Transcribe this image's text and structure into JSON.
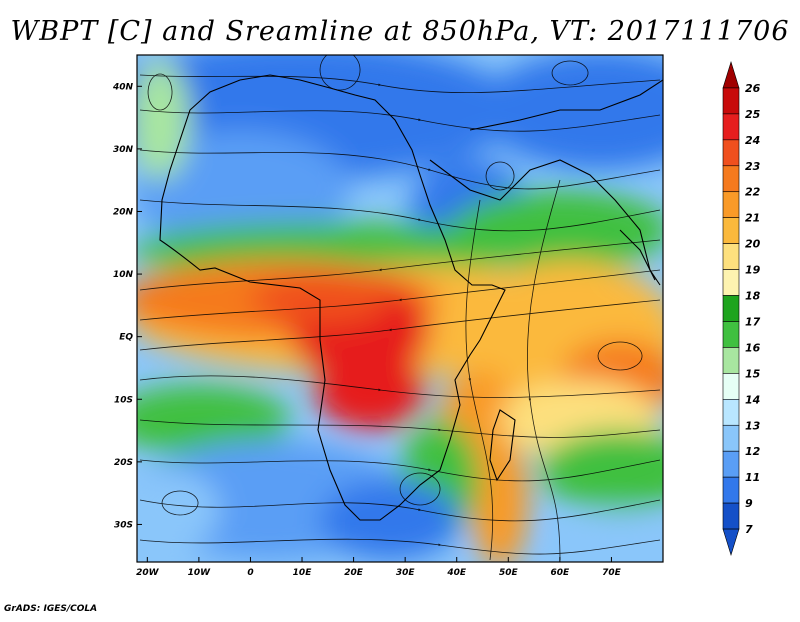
{
  "title": "WBPT [C] and Sreamline at 850hPa, VT: 2017111706",
  "footer": "GrADS: IGES/COLA",
  "map": {
    "lat_labels": [
      "40N",
      "30N",
      "20N",
      "10N",
      "EQ",
      "10S",
      "20S",
      "30S"
    ],
    "lat_values": [
      40,
      30,
      20,
      10,
      0,
      -10,
      -20,
      -30
    ],
    "lon_labels": [
      "20W",
      "10W",
      "0",
      "10E",
      "20E",
      "30E",
      "40E",
      "50E",
      "60E",
      "70E"
    ],
    "lon_values": [
      -20,
      -10,
      0,
      10,
      20,
      30,
      40,
      50,
      60,
      70
    ],
    "lat_range": [
      -36,
      45
    ],
    "lon_range": [
      -22,
      80
    ]
  },
  "colorbar": {
    "labels": [
      "26",
      "25",
      "24",
      "23",
      "22",
      "21",
      "20",
      "19",
      "18",
      "17",
      "16",
      "15",
      "14",
      "13",
      "12",
      "11",
      "9",
      "7"
    ],
    "colors": [
      "#a00000",
      "#c80a0a",
      "#e61e1e",
      "#f0501e",
      "#f57a1e",
      "#f99a28",
      "#fbb93c",
      "#fde07e",
      "#fdf3b0",
      "#1ea41e",
      "#40c040",
      "#a8e6a0",
      "#e6fff5",
      "#b9e6ff",
      "#8ac6fa",
      "#5a9ef5",
      "#3278eb",
      "#1450c8",
      "#1450c8"
    ]
  }
}
